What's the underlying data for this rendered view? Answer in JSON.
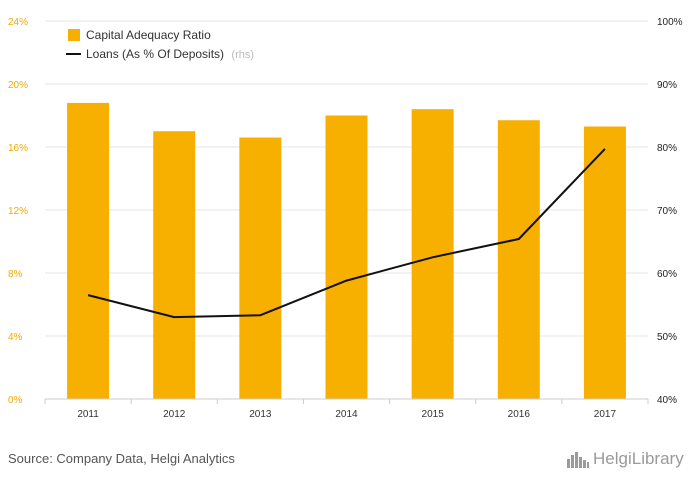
{
  "chart_data": {
    "type": "bar",
    "categories": [
      "2011",
      "2012",
      "2013",
      "2014",
      "2015",
      "2016",
      "2017"
    ],
    "series": [
      {
        "name": "Capital Adequacy Ratio",
        "type": "bar",
        "axis": "left",
        "color": "#f7af00",
        "values": [
          18.8,
          17.0,
          16.6,
          18.0,
          18.4,
          17.7,
          17.3
        ]
      },
      {
        "name": "Loans (As % Of Deposits)",
        "axis_note": "(rhs)",
        "type": "line",
        "axis": "right",
        "color": "#111111",
        "values": [
          56.5,
          53.0,
          53.3,
          58.8,
          62.5,
          65.4,
          79.7
        ]
      }
    ],
    "y_left": {
      "ylim": [
        0,
        24
      ],
      "ticks": [
        "0%",
        "4%",
        "8%",
        "12%",
        "16%",
        "20%",
        "24%"
      ],
      "tick_values": [
        0,
        4,
        8,
        12,
        16,
        20,
        24
      ]
    },
    "y_right": {
      "ylim": [
        40,
        100
      ],
      "ticks": [
        "40%",
        "50%",
        "60%",
        "70%",
        "80%",
        "90%",
        "100%"
      ],
      "tick_values": [
        40,
        50,
        60,
        70,
        80,
        90,
        100
      ]
    },
    "grid": true,
    "legend_position": "top-left"
  },
  "footer": {
    "source": "Source: Company Data, Helgi Analytics",
    "logo_part1": "Helgi",
    "logo_part2": "Library",
    "logo_icon": "city-skyline-icon"
  }
}
